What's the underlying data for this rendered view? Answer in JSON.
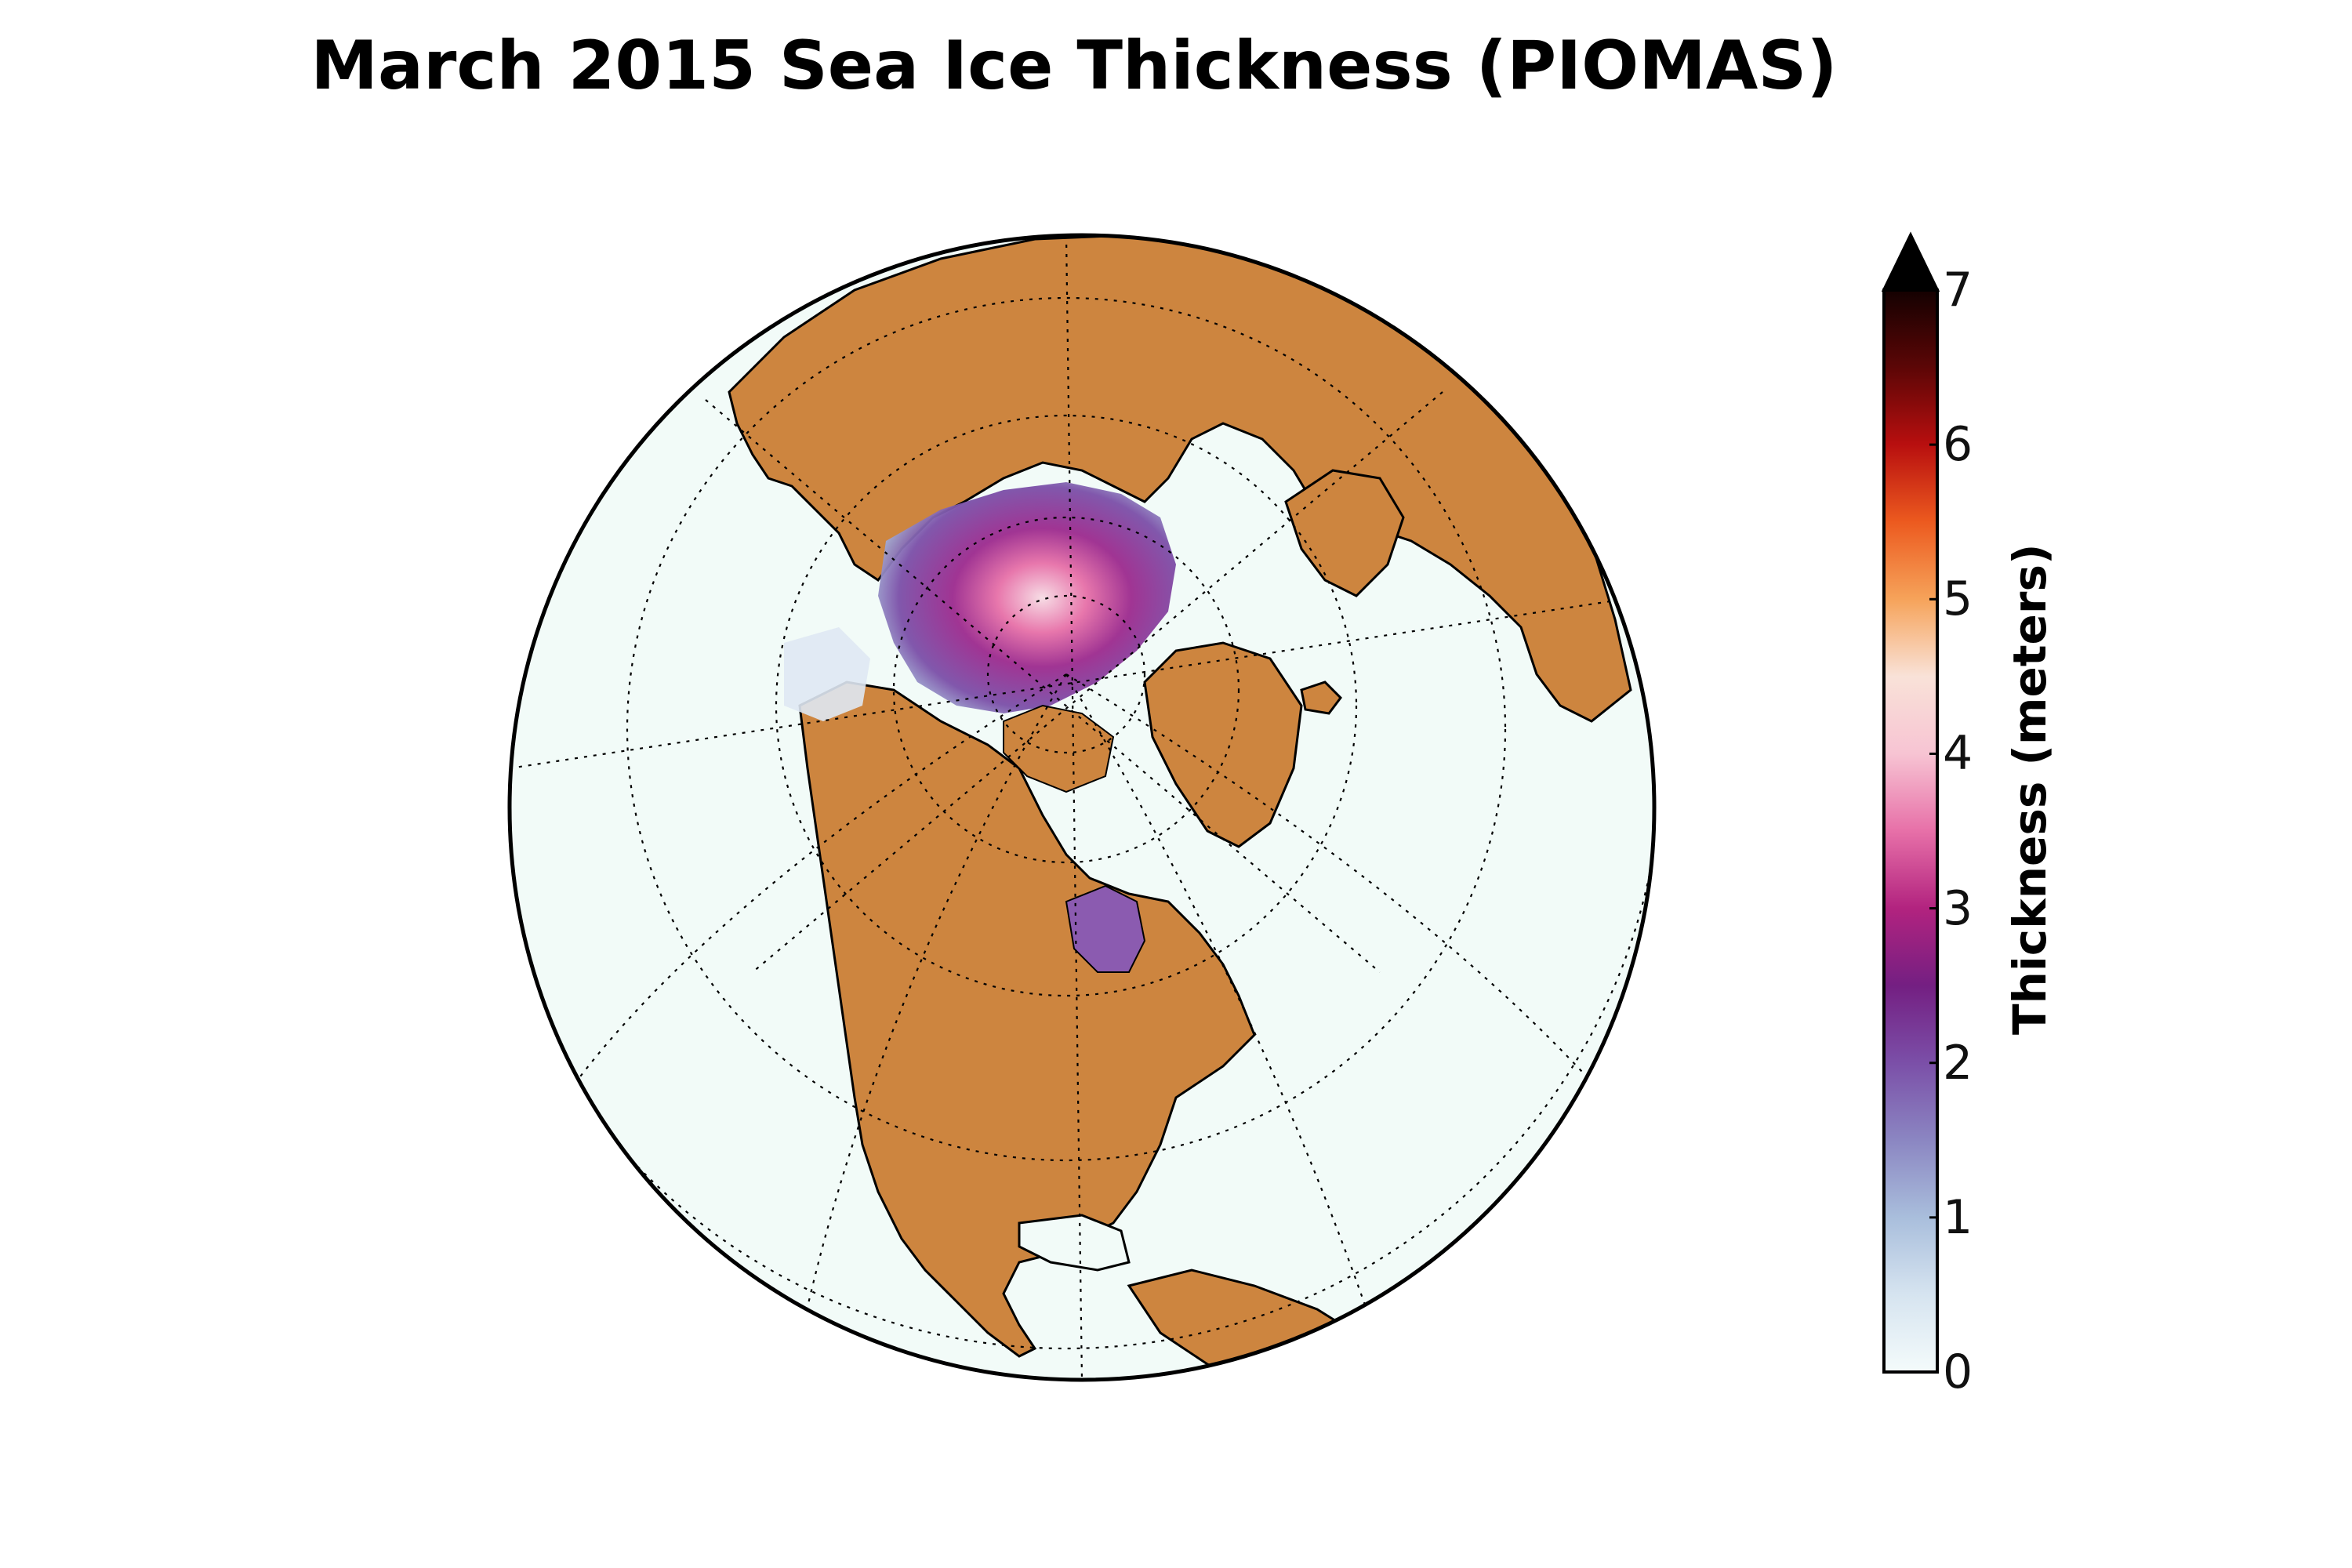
{
  "title": "March 2015 Sea Ice Thickness (PIOMAS)",
  "colorbar": {
    "label": "Thickness (meters)",
    "min": 0,
    "max": 7,
    "extend": "max",
    "ticks": [
      "0",
      "1",
      "2",
      "3",
      "4",
      "5",
      "6",
      "7"
    ],
    "stops": [
      {
        "value": 0,
        "color": "#f4fbfb"
      },
      {
        "value": 0.5,
        "color": "#d6e4f0"
      },
      {
        "value": 1,
        "color": "#a9bedc"
      },
      {
        "value": 1.5,
        "color": "#8b86c2"
      },
      {
        "value": 2,
        "color": "#7b4fa8"
      },
      {
        "value": 2.5,
        "color": "#741f82"
      },
      {
        "value": 3,
        "color": "#b2237f"
      },
      {
        "value": 3.5,
        "color": "#e770a8"
      },
      {
        "value": 4,
        "color": "#f7c4d3"
      },
      {
        "value": 4.5,
        "color": "#f9e2d8"
      },
      {
        "value": 5,
        "color": "#f6a35a"
      },
      {
        "value": 5.5,
        "color": "#ec5a1f"
      },
      {
        "value": 6,
        "color": "#b80f0f"
      },
      {
        "value": 6.5,
        "color": "#5c0606"
      },
      {
        "value": 7,
        "color": "#140101"
      }
    ]
  },
  "map": {
    "projection": "orthographic, north polar view",
    "land_color": "#cd853f",
    "ocean_color": "#f2fbf8",
    "coastline_color": "#000000",
    "graticule": "dotted"
  }
}
